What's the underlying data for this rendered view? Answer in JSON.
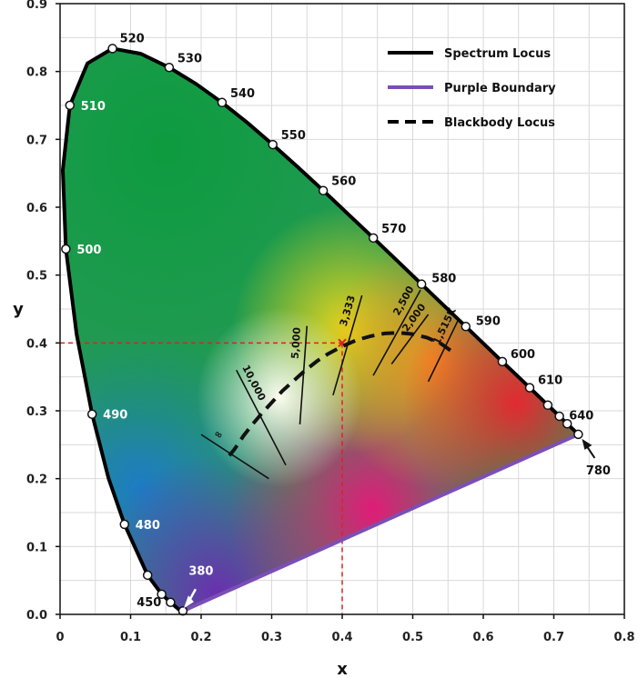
{
  "chart_data": {
    "type": "scatter",
    "xlabel": "x",
    "ylabel": "y",
    "xlim": [
      0,
      0.8
    ],
    "ylim": [
      0,
      0.9
    ],
    "xticks": [
      "0",
      "0.1",
      "0.2",
      "0.3",
      "0.4",
      "0.5",
      "0.6",
      "0.7",
      "0.8"
    ],
    "yticks": [
      "0.0",
      "0.1",
      "0.2",
      "0.3",
      "0.4",
      "0.5",
      "0.6",
      "0.7",
      "0.8",
      "0.9"
    ],
    "grid": true,
    "legend_position": "top-right",
    "legend": [
      {
        "label": "Spectrum Locus",
        "style": "solid",
        "color": "#000000"
      },
      {
        "label": "Purple Boundary",
        "style": "solid",
        "color": "#7b4fb5"
      },
      {
        "label": "Blackbody Locus",
        "style": "dashed",
        "color": "#000000"
      }
    ],
    "spectrum_locus": {
      "x": [
        0.1741,
        0.1733,
        0.1714,
        0.1689,
        0.1644,
        0.1566,
        0.144,
        0.1241,
        0.0913,
        0.0687,
        0.0454,
        0.0235,
        0.0082,
        0.0039,
        0.0139,
        0.0389,
        0.0743,
        0.1142,
        0.1547,
        0.1929,
        0.2296,
        0.2658,
        0.3016,
        0.3373,
        0.3731,
        0.4087,
        0.4441,
        0.4788,
        0.5125,
        0.5448,
        0.5752,
        0.6029,
        0.627,
        0.6482,
        0.6658,
        0.6801,
        0.6915,
        0.7006,
        0.7079,
        0.714,
        0.719,
        0.723,
        0.726,
        0.7283,
        0.73,
        0.7347
      ],
      "y": [
        0.005,
        0.0048,
        0.0051,
        0.0069,
        0.0109,
        0.0177,
        0.0297,
        0.0578,
        0.1327,
        0.2007,
        0.295,
        0.4127,
        0.5384,
        0.6548,
        0.7502,
        0.812,
        0.8338,
        0.8262,
        0.8059,
        0.7816,
        0.7543,
        0.7243,
        0.6923,
        0.6589,
        0.6245,
        0.5896,
        0.5547,
        0.5202,
        0.4866,
        0.4544,
        0.4242,
        0.3965,
        0.3725,
        0.3514,
        0.334,
        0.3197,
        0.3083,
        0.2993,
        0.292,
        0.2859,
        0.2809,
        0.277,
        0.274,
        0.2717,
        0.27,
        0.2653
      ]
    },
    "wavelength_markers": [
      {
        "label": "",
        "x": 0.1741,
        "y": 0.005
      },
      {
        "label": "",
        "x": 0.1566,
        "y": 0.0177
      },
      {
        "label": "",
        "x": 0.144,
        "y": 0.0297
      },
      {
        "label": "",
        "x": 0.1241,
        "y": 0.0578
      },
      {
        "label": "480",
        "x": 0.0913,
        "y": 0.1327
      },
      {
        "label": "490",
        "x": 0.0454,
        "y": 0.295
      },
      {
        "label": "500",
        "x": 0.0082,
        "y": 0.5384
      },
      {
        "label": "510",
        "x": 0.0139,
        "y": 0.7502
      },
      {
        "label": "520",
        "x": 0.0743,
        "y": 0.8338
      },
      {
        "label": "530",
        "x": 0.1547,
        "y": 0.8059
      },
      {
        "label": "540",
        "x": 0.2296,
        "y": 0.7543
      },
      {
        "label": "550",
        "x": 0.3016,
        "y": 0.6923
      },
      {
        "label": "560",
        "x": 0.3731,
        "y": 0.6245
      },
      {
        "label": "570",
        "x": 0.4441,
        "y": 0.5547
      },
      {
        "label": "580",
        "x": 0.5125,
        "y": 0.4866
      },
      {
        "label": "590",
        "x": 0.5752,
        "y": 0.4242
      },
      {
        "label": "600",
        "x": 0.627,
        "y": 0.3725
      },
      {
        "label": "610",
        "x": 0.6658,
        "y": 0.334
      },
      {
        "label": "",
        "x": 0.6915,
        "y": 0.3083
      },
      {
        "label": "",
        "x": 0.7079,
        "y": 0.292
      },
      {
        "label": "640",
        "x": 0.719,
        "y": 0.2809
      },
      {
        "label": "",
        "x": 0.7347,
        "y": 0.2653
      }
    ],
    "label_450": "450",
    "arrow_labels": {
      "start": "380",
      "end": "780"
    },
    "purple_boundary": {
      "x": [
        0.1741,
        0.7347
      ],
      "y": [
        0.005,
        0.2653
      ]
    },
    "blackbody_locus": {
      "x": [
        0.24,
        0.247,
        0.253,
        0.26,
        0.272,
        0.285,
        0.3,
        0.315,
        0.331,
        0.347,
        0.364,
        0.38,
        0.4,
        0.42,
        0.44,
        0.46,
        0.48,
        0.5,
        0.52,
        0.54,
        0.559
      ],
      "y": [
        0.234,
        0.243,
        0.252,
        0.263,
        0.279,
        0.295,
        0.312,
        0.329,
        0.344,
        0.359,
        0.373,
        0.384,
        0.395,
        0.404,
        0.41,
        0.414,
        0.415,
        0.413,
        0.408,
        0.399,
        0.385
      ]
    },
    "isotherms": [
      {
        "label": "∞",
        "x1": 0.2,
        "y1": 0.265,
        "x2": 0.296,
        "y2": 0.2
      },
      {
        "label": "10,000",
        "x1": 0.25,
        "y1": 0.36,
        "x2": 0.32,
        "y2": 0.22
      },
      {
        "label": "5,000",
        "x1": 0.35,
        "y1": 0.425,
        "x2": 0.34,
        "y2": 0.28
      },
      {
        "label": "3,333",
        "x1": 0.428,
        "y1": 0.47,
        "x2": 0.387,
        "y2": 0.323
      },
      {
        "label": "2,500",
        "x1": 0.511,
        "y1": 0.478,
        "x2": 0.444,
        "y2": 0.352
      },
      {
        "label": "2,000",
        "x1": 0.522,
        "y1": 0.442,
        "x2": 0.47,
        "y2": 0.369
      },
      {
        "label": "1,515K",
        "x1": 0.565,
        "y1": 0.435,
        "x2": 0.522,
        "y2": 0.343
      }
    ],
    "reference_point": {
      "x": 0.4,
      "y": 0.4,
      "color": "#e02020"
    }
  }
}
